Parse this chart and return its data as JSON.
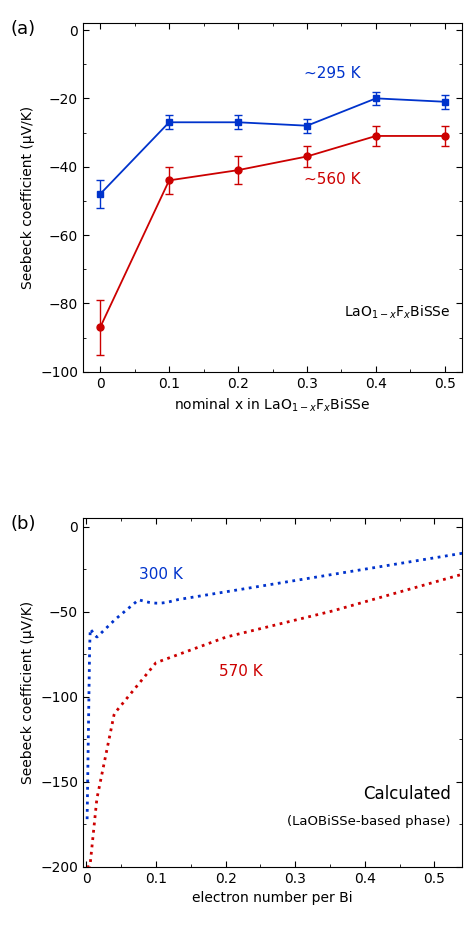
{
  "panel_a": {
    "blue_x": [
      0,
      0.1,
      0.2,
      0.3,
      0.4,
      0.5
    ],
    "blue_y": [
      -48,
      -27,
      -27,
      -28,
      -20,
      -21
    ],
    "blue_yerr": [
      4,
      2,
      2,
      2,
      2,
      2
    ],
    "red_x": [
      0,
      0.1,
      0.2,
      0.3,
      0.4,
      0.5
    ],
    "red_y": [
      -87,
      -44,
      -41,
      -37,
      -31,
      -31
    ],
    "red_yerr": [
      8,
      4,
      4,
      3,
      3,
      3
    ],
    "blue_label": "~295 K",
    "red_label": "~560 K",
    "blue_color": "#0033cc",
    "red_color": "#cc0000",
    "ylabel": "Seebeck coefficient (μV/K)",
    "xlim": [
      -0.025,
      0.525
    ],
    "ylim": [
      -100,
      2
    ],
    "yticks": [
      0,
      -20,
      -40,
      -60,
      -80,
      -100
    ],
    "xticks": [
      0,
      0.1,
      0.2,
      0.3,
      0.4,
      0.5
    ],
    "xticklabels": [
      "0",
      "0.1",
      "0.2",
      "0.3",
      "0.4",
      "0.5"
    ],
    "panel_label": "(a)"
  },
  "panel_b": {
    "blue_label": "300 K",
    "red_label": "570 K",
    "blue_color": "#0033cc",
    "red_color": "#cc0000",
    "ylabel": "Seebeck coefficient (μV/K)",
    "xlabel": "electron number per Bi",
    "xlim": [
      -0.005,
      0.54
    ],
    "ylim": [
      -200,
      5
    ],
    "yticks": [
      0,
      -50,
      -100,
      -150,
      -200
    ],
    "xticks": [
      0,
      0.1,
      0.2,
      0.3,
      0.4,
      0.5
    ],
    "xticklabels": [
      "0",
      "0.1",
      "0.2",
      "0.3",
      "0.4",
      "0.5"
    ],
    "annotation_line1": "Calculated",
    "annotation_line2": "(LaOBiSSe-based phase)",
    "panel_label": "(b)"
  }
}
